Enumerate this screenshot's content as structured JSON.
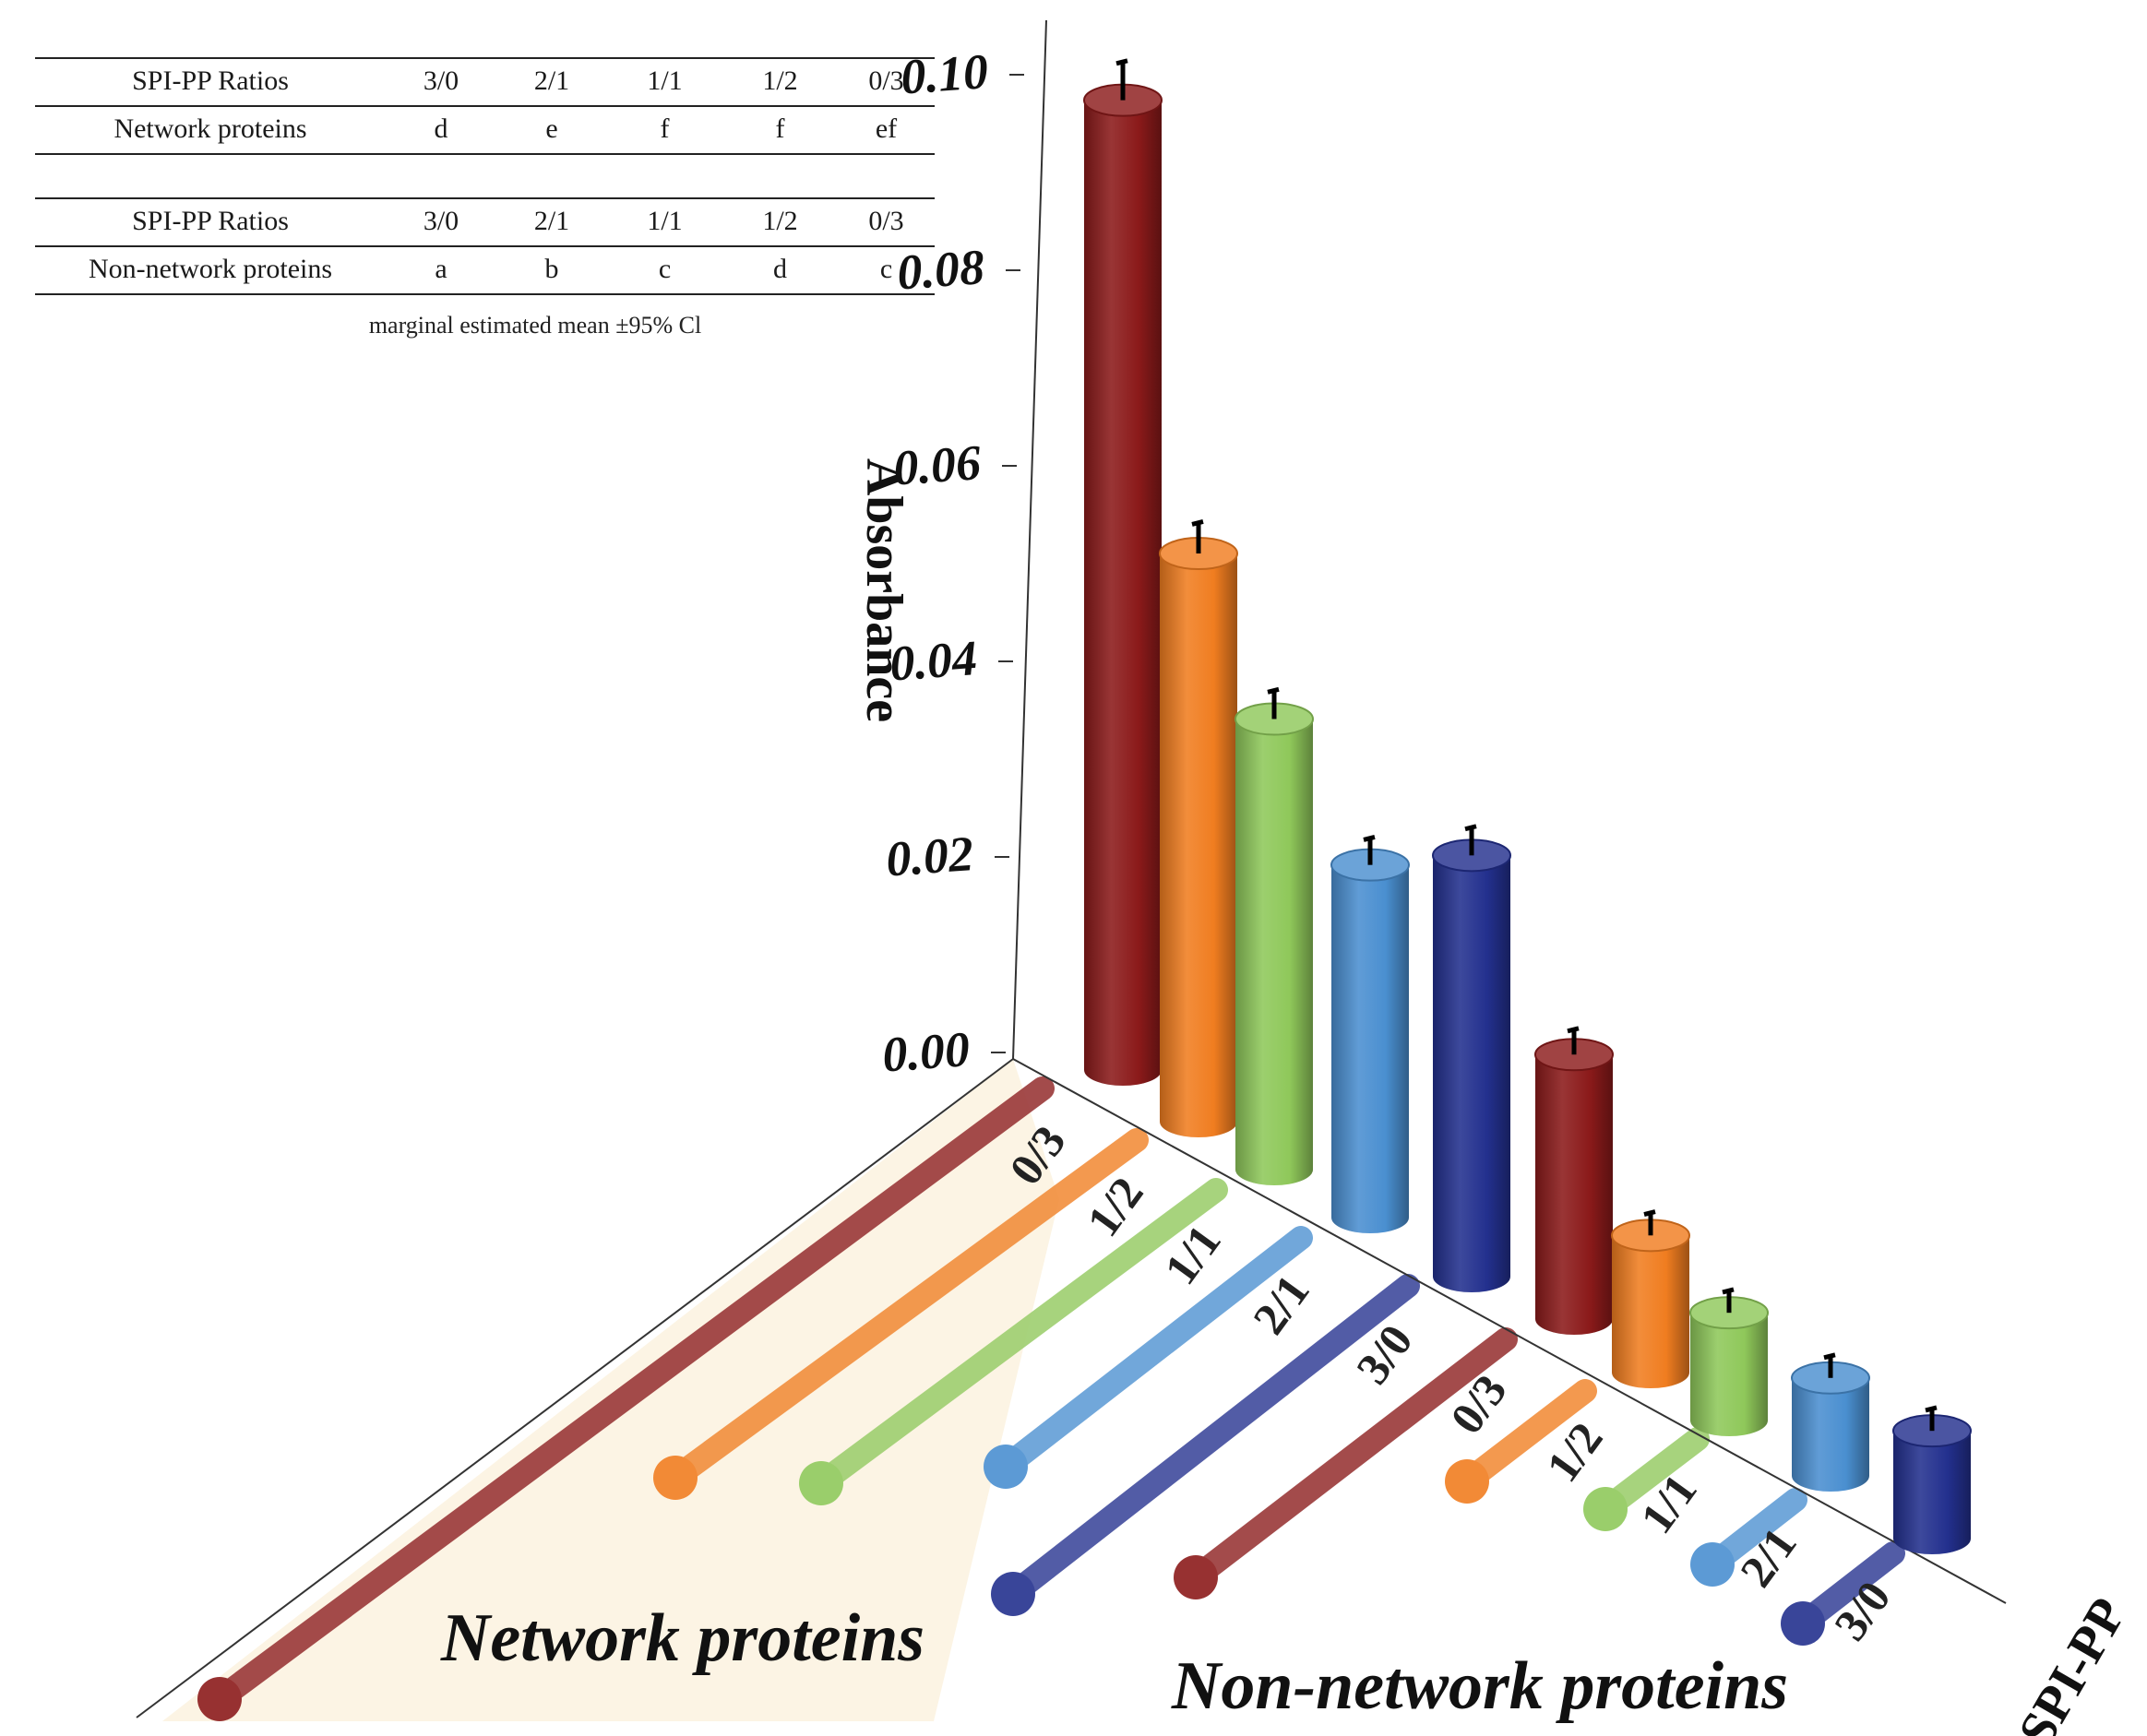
{
  "tables": [
    {
      "header": [
        "SPI-PP Ratios",
        "3/0",
        "2/1",
        "1/1",
        "1/2",
        "0/3"
      ],
      "row": [
        "Network proteins",
        "d",
        "e",
        "f",
        "f",
        "ef"
      ]
    },
    {
      "header": [
        "SPI-PP Ratios",
        "3/0",
        "2/1",
        "1/1",
        "1/2",
        "0/3"
      ],
      "row": [
        "Non-network  proteins",
        "a",
        "b",
        "c",
        "d",
        "c"
      ]
    }
  ],
  "caption": "marginal estimated mean ±95% Cl",
  "colors": {
    "0/3": "#8b1a1a",
    "1/2": "#f07d20",
    "1/1": "#8fc85a",
    "2/1": "#4a8fd0",
    "3/0": "#23308e",
    "floor": "#fcf4e4",
    "error_bar": "#000000"
  },
  "chart_data": {
    "type": "bar",
    "subtype": "3d-cylinder",
    "zlabel": "Absorbance",
    "ylabel": "SPI-PP",
    "zlim": [
      0,
      0.1
    ],
    "z_ticks": [
      "0.00",
      "0.02",
      "0.04",
      "0.06",
      "0.08",
      "0.10"
    ],
    "groups": [
      {
        "name": "Network proteins",
        "categories": [
          "0/3",
          "1/2",
          "1/1",
          "2/1",
          "3/0"
        ],
        "values": [
          0.099,
          0.058,
          0.046,
          0.036,
          0.043
        ]
      },
      {
        "name": "Non-network proteins",
        "categories": [
          "0/3",
          "1/2",
          "1/1",
          "2/1",
          "3/0"
        ],
        "values": [
          0.027,
          0.014,
          0.011,
          0.01,
          0.011
        ]
      }
    ]
  }
}
